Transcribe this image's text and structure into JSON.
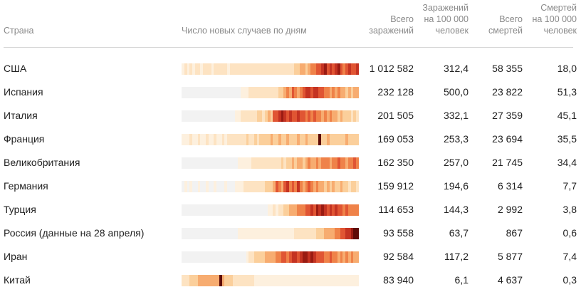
{
  "header": {
    "country": "Страна",
    "daily_cases": "Число новых случаев по дням",
    "total_cases": "Всего\nзаражений",
    "cases_per_100k": "Заражений\nна 100 000\nчеловек",
    "total_deaths": "Всего\nсмертей",
    "deaths_per_100k": "Смертей\nна 100 000\nчеловек"
  },
  "palette": [
    "#f2f2f2",
    "#fdf0de",
    "#fde3c2",
    "#fbcf9b",
    "#f7ac70",
    "#ef8249",
    "#e05533",
    "#c43322",
    "#9a1b12",
    "#5e0a06"
  ],
  "rows": [
    {
      "country": "США",
      "total": "1 012 582",
      "per100k": "312,4",
      "deaths": "58 355",
      "deaths100k": "18,0",
      "heat": [
        1,
        2,
        1,
        2,
        1,
        2,
        2,
        1,
        2,
        2,
        2,
        1,
        2,
        2,
        2,
        2,
        2,
        1,
        2,
        2,
        2,
        2,
        2,
        2,
        2,
        2,
        2,
        2,
        2,
        2,
        2,
        2,
        2,
        2,
        2,
        2,
        2,
        2,
        2,
        2,
        2,
        2,
        3,
        3,
        4,
        4,
        3,
        4,
        5,
        5,
        6,
        6,
        7,
        8,
        6,
        7,
        6,
        7,
        8,
        6,
        5,
        6,
        7,
        6,
        6,
        7
      ]
    },
    {
      "country": "Испания",
      "total": "232 128",
      "per100k": "500,0",
      "deaths": "23 822",
      "deaths100k": "51,3",
      "heat": [
        0,
        0,
        0,
        0,
        0,
        0,
        0,
        0,
        0,
        0,
        0,
        0,
        0,
        0,
        0,
        0,
        0,
        0,
        0,
        0,
        0,
        0,
        1,
        1,
        1,
        2,
        2,
        2,
        2,
        2,
        2,
        2,
        2,
        2,
        2,
        2,
        3,
        3,
        4,
        5,
        4,
        6,
        5,
        4,
        5,
        6,
        7,
        7,
        6,
        7,
        7,
        6,
        6,
        5,
        5,
        4,
        5,
        4,
        5,
        4,
        4,
        3,
        4,
        3,
        4,
        4
      ]
    },
    {
      "country": "Италия",
      "total": "201 505",
      "per100k": "332,1",
      "deaths": "27 359",
      "deaths100k": "45,1",
      "heat": [
        0,
        0,
        0,
        0,
        0,
        0,
        0,
        0,
        0,
        0,
        0,
        0,
        0,
        0,
        0,
        0,
        0,
        0,
        0,
        0,
        1,
        1,
        2,
        2,
        2,
        2,
        2,
        2,
        3,
        3,
        2,
        3,
        4,
        3,
        6,
        6,
        7,
        8,
        7,
        6,
        7,
        6,
        6,
        7,
        6,
        6,
        5,
        6,
        5,
        6,
        5,
        5,
        4,
        5,
        4,
        5,
        4,
        4,
        3,
        4,
        3,
        3,
        3,
        2,
        3,
        2
      ]
    },
    {
      "country": "Франция",
      "total": "169 053",
      "per100k": "253,3",
      "deaths": "23 694",
      "deaths100k": "35,5",
      "heat": [
        1,
        1,
        1,
        2,
        1,
        1,
        2,
        1,
        1,
        2,
        1,
        1,
        2,
        1,
        1,
        2,
        1,
        2,
        2,
        2,
        2,
        2,
        2,
        2,
        3,
        2,
        2,
        3,
        2,
        3,
        3,
        3,
        3,
        4,
        3,
        3,
        4,
        3,
        3,
        4,
        3,
        3,
        3,
        4,
        3,
        3,
        4,
        3,
        3,
        3,
        3,
        9,
        3,
        3,
        4,
        3,
        3,
        3,
        3,
        3,
        3,
        4,
        3,
        3,
        3,
        3
      ]
    },
    {
      "country": "Великобритания",
      "total": "162 350",
      "per100k": "257,0",
      "deaths": "21 745",
      "deaths100k": "34,4",
      "heat": [
        0,
        0,
        0,
        0,
        0,
        0,
        0,
        0,
        0,
        0,
        0,
        0,
        0,
        0,
        0,
        0,
        0,
        0,
        0,
        0,
        0,
        1,
        1,
        1,
        1,
        1,
        2,
        2,
        2,
        2,
        2,
        2,
        2,
        2,
        2,
        2,
        2,
        3,
        2,
        3,
        3,
        4,
        3,
        4,
        4,
        3,
        4,
        5,
        4,
        4,
        5,
        4,
        5,
        5,
        5,
        4,
        5,
        5,
        6,
        5,
        5,
        4,
        5,
        5,
        6,
        5
      ]
    },
    {
      "country": "Германия",
      "total": "159 912",
      "per100k": "194,6",
      "deaths": "6 314",
      "deaths100k": "7,7",
      "heat": [
        0,
        1,
        0,
        1,
        0,
        0,
        1,
        0,
        0,
        1,
        0,
        0,
        1,
        0,
        0,
        0,
        1,
        0,
        0,
        0,
        1,
        1,
        1,
        2,
        2,
        2,
        2,
        2,
        2,
        2,
        2,
        3,
        3,
        3,
        4,
        6,
        5,
        4,
        6,
        7,
        5,
        6,
        5,
        7,
        5,
        4,
        5,
        6,
        5,
        4,
        5,
        4,
        4,
        3,
        4,
        3,
        4,
        3,
        3,
        4,
        3,
        3,
        2,
        3,
        3,
        2
      ]
    },
    {
      "country": "Турция",
      "total": "114 653",
      "per100k": "144,3",
      "deaths": "2 992",
      "deaths100k": "3,8",
      "heat": [
        0,
        0,
        0,
        0,
        0,
        0,
        0,
        0,
        0,
        0,
        0,
        0,
        0,
        0,
        0,
        0,
        0,
        0,
        0,
        0,
        0,
        0,
        0,
        0,
        0,
        0,
        0,
        0,
        0,
        0,
        0,
        0,
        1,
        1,
        2,
        1,
        2,
        2,
        3,
        3,
        4,
        4,
        4,
        5,
        5,
        5,
        6,
        6,
        7,
        6,
        8,
        7,
        8,
        7,
        6,
        7,
        6,
        7,
        6,
        6,
        5,
        6,
        5,
        5,
        5,
        5
      ]
    },
    {
      "country": "Россия (данные на 28 апреля)",
      "total": "93 558",
      "per100k": "63,7",
      "deaths": "867",
      "deaths100k": "0,6",
      "heat": [
        0,
        0,
        0,
        0,
        0,
        0,
        0,
        0,
        0,
        0,
        0,
        0,
        0,
        0,
        0,
        0,
        0,
        0,
        0,
        0,
        0,
        1,
        1,
        1,
        1,
        1,
        1,
        1,
        1,
        1,
        1,
        1,
        1,
        1,
        1,
        1,
        1,
        1,
        1,
        1,
        1,
        1,
        2,
        2,
        2,
        2,
        2,
        2,
        2,
        2,
        3,
        3,
        3,
        4,
        4,
        4,
        4,
        5,
        5,
        6,
        6,
        7,
        7,
        8,
        9,
        9
      ]
    },
    {
      "country": "Иран",
      "total": "92 584",
      "per100k": "117,2",
      "deaths": "5 877",
      "deaths100k": "7,4",
      "heat": [
        0,
        0,
        0,
        0,
        0,
        0,
        0,
        0,
        0,
        0,
        0,
        0,
        0,
        0,
        0,
        0,
        0,
        0,
        0,
        0,
        0,
        0,
        0,
        0,
        1,
        2,
        2,
        3,
        3,
        3,
        3,
        4,
        4,
        4,
        4,
        5,
        5,
        6,
        6,
        5,
        6,
        7,
        7,
        6,
        7,
        8,
        8,
        7,
        8,
        7,
        6,
        6,
        6,
        5,
        5,
        6,
        5,
        5,
        4,
        5,
        4,
        5,
        4,
        5,
        4,
        4
      ]
    },
    {
      "country": "Китай",
      "total": "83 940",
      "per100k": "6,1",
      "deaths": "4 637",
      "deaths100k": "0,3",
      "heat": [
        2,
        2,
        2,
        3,
        3,
        3,
        4,
        4,
        4,
        4,
        4,
        4,
        4,
        4,
        9,
        4,
        3,
        3,
        3,
        2,
        2,
        2,
        2,
        2,
        2,
        2,
        2,
        1,
        1,
        1,
        1,
        1,
        1,
        1,
        1,
        1,
        1,
        1,
        1,
        1,
        1,
        1,
        1,
        1,
        1,
        1,
        1,
        1,
        1,
        1,
        1,
        1,
        1,
        1,
        1,
        1,
        1,
        1,
        1,
        1,
        1,
        1,
        1,
        1,
        1,
        1
      ]
    }
  ]
}
